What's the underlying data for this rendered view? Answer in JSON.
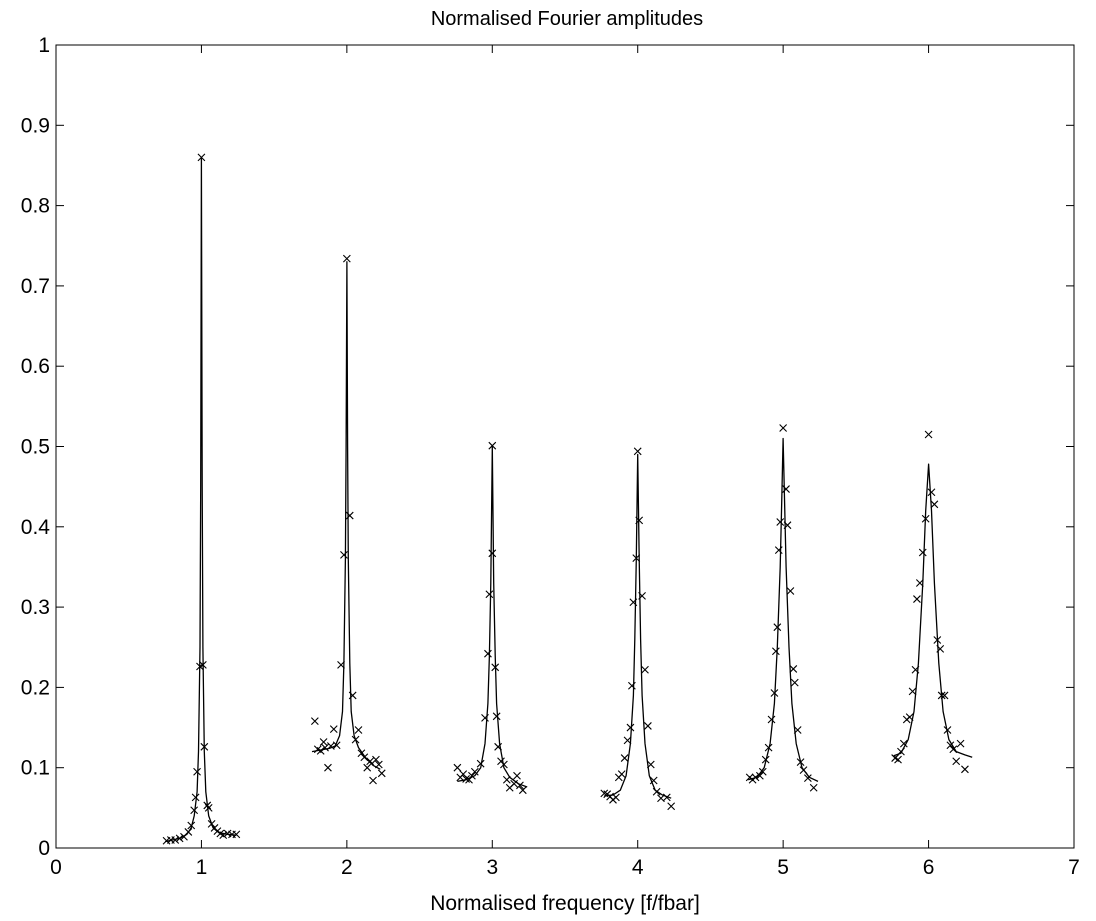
{
  "chart_data": {
    "type": "scatter",
    "title": "Normalised Fourier amplitudes",
    "xlabel": "Normalised frequency [f/fbar]",
    "ylabel": "",
    "xlim": [
      0,
      7
    ],
    "ylim": [
      0,
      1
    ],
    "x_ticks": [
      "0",
      "1",
      "2",
      "3",
      "4",
      "5",
      "6",
      "7"
    ],
    "y_ticks": [
      "0",
      "0.1",
      "0.2",
      "0.3",
      "0.4",
      "0.5",
      "0.6",
      "0.7",
      "0.8",
      "0.9",
      "1"
    ],
    "grid": false,
    "colors": {
      "line": "#000000",
      "marker": "#000000",
      "background": "#ffffff"
    },
    "series": [
      {
        "kind": "markers",
        "marker": "x",
        "points": [
          [
            0.76,
            0.009
          ],
          [
            0.79,
            0.01
          ],
          [
            0.82,
            0.01
          ],
          [
            0.85,
            0.012
          ],
          [
            0.88,
            0.014
          ],
          [
            0.91,
            0.02
          ],
          [
            0.93,
            0.028
          ],
          [
            0.95,
            0.047
          ],
          [
            0.96,
            0.063
          ],
          [
            0.97,
            0.095
          ],
          [
            0.99,
            0.226
          ],
          [
            1.0,
            0.86
          ],
          [
            1.01,
            0.228
          ],
          [
            1.02,
            0.126
          ],
          [
            1.04,
            0.053
          ],
          [
            1.05,
            0.05
          ],
          [
            1.07,
            0.03
          ],
          [
            1.09,
            0.025
          ],
          [
            1.11,
            0.021
          ],
          [
            1.13,
            0.018
          ],
          [
            1.15,
            0.016
          ],
          [
            1.18,
            0.018
          ],
          [
            1.21,
            0.017
          ],
          [
            1.24,
            0.017
          ],
          [
            1.78,
            0.158
          ],
          [
            1.8,
            0.123
          ],
          [
            1.82,
            0.121
          ],
          [
            1.84,
            0.132
          ],
          [
            1.85,
            0.125
          ],
          [
            1.87,
            0.1
          ],
          [
            1.89,
            0.127
          ],
          [
            1.91,
            0.148
          ],
          [
            1.93,
            0.128
          ],
          [
            1.96,
            0.228
          ],
          [
            1.98,
            0.365
          ],
          [
            2.0,
            0.734
          ],
          [
            2.02,
            0.414
          ],
          [
            2.04,
            0.19
          ],
          [
            2.06,
            0.135
          ],
          [
            2.08,
            0.147
          ],
          [
            2.1,
            0.118
          ],
          [
            2.12,
            0.113
          ],
          [
            2.14,
            0.1
          ],
          [
            2.16,
            0.108
          ],
          [
            2.18,
            0.084
          ],
          [
            2.2,
            0.11
          ],
          [
            2.22,
            0.104
          ],
          [
            2.24,
            0.093
          ],
          [
            2.76,
            0.1
          ],
          [
            2.78,
            0.088
          ],
          [
            2.8,
            0.092
          ],
          [
            2.82,
            0.086
          ],
          [
            2.84,
            0.085
          ],
          [
            2.86,
            0.09
          ],
          [
            2.88,
            0.095
          ],
          [
            2.92,
            0.105
          ],
          [
            2.95,
            0.162
          ],
          [
            2.97,
            0.242
          ],
          [
            2.98,
            0.316
          ],
          [
            3.0,
            0.367
          ],
          [
            3.0,
            0.501
          ],
          [
            3.02,
            0.225
          ],
          [
            3.03,
            0.164
          ],
          [
            3.04,
            0.126
          ],
          [
            3.06,
            0.108
          ],
          [
            3.08,
            0.104
          ],
          [
            3.1,
            0.085
          ],
          [
            3.12,
            0.075
          ],
          [
            3.15,
            0.08
          ],
          [
            3.17,
            0.09
          ],
          [
            3.19,
            0.078
          ],
          [
            3.21,
            0.072
          ],
          [
            3.77,
            0.068
          ],
          [
            3.79,
            0.067
          ],
          [
            3.81,
            0.064
          ],
          [
            3.83,
            0.06
          ],
          [
            3.85,
            0.063
          ],
          [
            3.87,
            0.088
          ],
          [
            3.89,
            0.092
          ],
          [
            3.91,
            0.112
          ],
          [
            3.93,
            0.134
          ],
          [
            3.95,
            0.15
          ],
          [
            3.96,
            0.202
          ],
          [
            3.97,
            0.306
          ],
          [
            3.99,
            0.361
          ],
          [
            4.0,
            0.494
          ],
          [
            4.01,
            0.408
          ],
          [
            4.03,
            0.314
          ],
          [
            4.05,
            0.222
          ],
          [
            4.07,
            0.152
          ],
          [
            4.09,
            0.104
          ],
          [
            4.11,
            0.084
          ],
          [
            4.13,
            0.07
          ],
          [
            4.16,
            0.062
          ],
          [
            4.2,
            0.063
          ],
          [
            4.23,
            0.052
          ],
          [
            4.77,
            0.088
          ],
          [
            4.79,
            0.085
          ],
          [
            4.81,
            0.088
          ],
          [
            4.84,
            0.09
          ],
          [
            4.86,
            0.095
          ],
          [
            4.88,
            0.11
          ],
          [
            4.9,
            0.125
          ],
          [
            4.92,
            0.16
          ],
          [
            4.94,
            0.193
          ],
          [
            4.95,
            0.245
          ],
          [
            4.96,
            0.275
          ],
          [
            4.97,
            0.371
          ],
          [
            4.98,
            0.406
          ],
          [
            5.0,
            0.523
          ],
          [
            5.02,
            0.447
          ],
          [
            5.03,
            0.402
          ],
          [
            5.05,
            0.32
          ],
          [
            5.07,
            0.223
          ],
          [
            5.08,
            0.206
          ],
          [
            5.1,
            0.147
          ],
          [
            5.12,
            0.107
          ],
          [
            5.14,
            0.097
          ],
          [
            5.17,
            0.087
          ],
          [
            5.21,
            0.075
          ],
          [
            5.77,
            0.112
          ],
          [
            5.79,
            0.11
          ],
          [
            5.81,
            0.12
          ],
          [
            5.83,
            0.13
          ],
          [
            5.85,
            0.16
          ],
          [
            5.87,
            0.163
          ],
          [
            5.89,
            0.195
          ],
          [
            5.91,
            0.222
          ],
          [
            5.92,
            0.31
          ],
          [
            5.94,
            0.33
          ],
          [
            5.96,
            0.368
          ],
          [
            5.98,
            0.41
          ],
          [
            6.0,
            0.515
          ],
          [
            6.02,
            0.443
          ],
          [
            6.04,
            0.428
          ],
          [
            6.06,
            0.259
          ],
          [
            6.08,
            0.248
          ],
          [
            6.09,
            0.19
          ],
          [
            6.11,
            0.19
          ],
          [
            6.13,
            0.147
          ],
          [
            6.15,
            0.128
          ],
          [
            6.17,
            0.123
          ],
          [
            6.19,
            0.108
          ],
          [
            6.22,
            0.13
          ],
          [
            6.25,
            0.098
          ]
        ]
      },
      {
        "kind": "line",
        "segments": [
          [
            [
              0.75,
              0.008
            ],
            [
              0.8,
              0.01
            ],
            [
              0.85,
              0.012
            ],
            [
              0.9,
              0.017
            ],
            [
              0.93,
              0.025
            ],
            [
              0.95,
              0.04
            ],
            [
              0.97,
              0.07
            ],
            [
              0.98,
              0.12
            ],
            [
              0.99,
              0.25
            ],
            [
              0.995,
              0.45
            ],
            [
              1.0,
              0.86
            ],
            [
              1.005,
              0.45
            ],
            [
              1.01,
              0.25
            ],
            [
              1.02,
              0.12
            ],
            [
              1.03,
              0.07
            ],
            [
              1.05,
              0.04
            ],
            [
              1.08,
              0.025
            ],
            [
              1.12,
              0.019
            ],
            [
              1.18,
              0.017
            ],
            [
              1.24,
              0.016
            ]
          ],
          [
            [
              1.76,
              0.12
            ],
            [
              1.82,
              0.122
            ],
            [
              1.88,
              0.124
            ],
            [
              1.92,
              0.127
            ],
            [
              1.95,
              0.14
            ],
            [
              1.97,
              0.17
            ],
            [
              1.98,
              0.23
            ],
            [
              1.99,
              0.36
            ],
            [
              1.995,
              0.5
            ],
            [
              2.0,
              0.73
            ],
            [
              2.005,
              0.5
            ],
            [
              2.01,
              0.36
            ],
            [
              2.02,
              0.23
            ],
            [
              2.03,
              0.17
            ],
            [
              2.05,
              0.14
            ],
            [
              2.08,
              0.125
            ],
            [
              2.13,
              0.112
            ],
            [
              2.18,
              0.103
            ],
            [
              2.23,
              0.098
            ]
          ],
          [
            [
              2.76,
              0.083
            ],
            [
              2.82,
              0.085
            ],
            [
              2.88,
              0.09
            ],
            [
              2.92,
              0.1
            ],
            [
              2.95,
              0.13
            ],
            [
              2.97,
              0.18
            ],
            [
              2.98,
              0.24
            ],
            [
              2.99,
              0.33
            ],
            [
              3.0,
              0.5
            ],
            [
              3.01,
              0.33
            ],
            [
              3.02,
              0.24
            ],
            [
              3.03,
              0.18
            ],
            [
              3.05,
              0.13
            ],
            [
              3.08,
              0.1
            ],
            [
              3.12,
              0.088
            ],
            [
              3.18,
              0.08
            ],
            [
              3.24,
              0.076
            ]
          ],
          [
            [
              3.77,
              0.065
            ],
            [
              3.83,
              0.066
            ],
            [
              3.88,
              0.072
            ],
            [
              3.92,
              0.09
            ],
            [
              3.95,
              0.13
            ],
            [
              3.97,
              0.19
            ],
            [
              3.98,
              0.26
            ],
            [
              3.99,
              0.36
            ],
            [
              4.0,
              0.49
            ],
            [
              4.01,
              0.36
            ],
            [
              4.02,
              0.26
            ],
            [
              4.03,
              0.19
            ],
            [
              4.05,
              0.13
            ],
            [
              4.08,
              0.09
            ],
            [
              4.12,
              0.072
            ],
            [
              4.17,
              0.066
            ],
            [
              4.23,
              0.062
            ]
          ],
          [
            [
              4.76,
              0.085
            ],
            [
              4.82,
              0.088
            ],
            [
              4.87,
              0.1
            ],
            [
              4.91,
              0.13
            ],
            [
              4.94,
              0.18
            ],
            [
              4.96,
              0.25
            ],
            [
              4.98,
              0.35
            ],
            [
              4.99,
              0.43
            ],
            [
              5.0,
              0.51
            ],
            [
              5.01,
              0.43
            ],
            [
              5.02,
              0.35
            ],
            [
              5.04,
              0.25
            ],
            [
              5.06,
              0.18
            ],
            [
              5.09,
              0.13
            ],
            [
              5.13,
              0.1
            ],
            [
              5.18,
              0.088
            ],
            [
              5.24,
              0.083
            ]
          ],
          [
            [
              5.76,
              0.115
            ],
            [
              5.81,
              0.118
            ],
            [
              5.86,
              0.135
            ],
            [
              5.9,
              0.17
            ],
            [
              5.93,
              0.23
            ],
            [
              5.96,
              0.33
            ],
            [
              5.98,
              0.42
            ],
            [
              6.0,
              0.478
            ],
            [
              6.02,
              0.42
            ],
            [
              6.04,
              0.33
            ],
            [
              6.07,
              0.23
            ],
            [
              6.1,
              0.17
            ],
            [
              6.14,
              0.135
            ],
            [
              6.19,
              0.12
            ],
            [
              6.25,
              0.116
            ],
            [
              6.3,
              0.113
            ]
          ]
        ]
      }
    ]
  }
}
